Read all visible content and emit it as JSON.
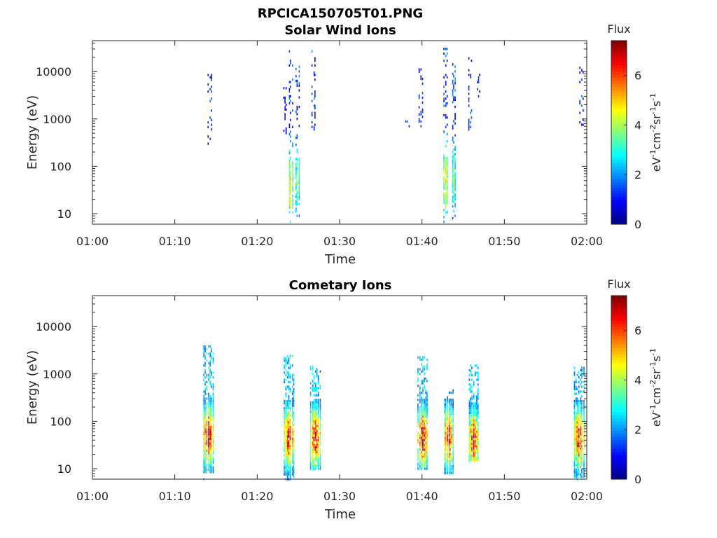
{
  "figure_title": "RPCICA150705T01.PNG",
  "chart_data": [
    {
      "type": "heatmap",
      "title": "Solar Wind Ions",
      "xlabel": "Time",
      "ylabel": "Energy (eV)",
      "x_ticks": [
        "01:00",
        "01:10",
        "01:20",
        "01:30",
        "01:40",
        "01:50",
        "02:00"
      ],
      "xlim": [
        "01:00",
        "02:00"
      ],
      "y_scale": "log",
      "y_ticks": [
        "10",
        "100",
        "1000",
        "10000"
      ],
      "ylim": [
        6,
        45000
      ],
      "colorbar": {
        "title": "Flux",
        "ticks": [
          "0",
          "2",
          "4",
          "6"
        ],
        "range": [
          0,
          7.4
        ]
      },
      "bursts": [
        {
          "t": 14.2,
          "emin": 300,
          "emax": 15000,
          "peak_e": 2000,
          "flux": 1.8
        },
        {
          "t": 23.3,
          "emin": 500,
          "emax": 5000,
          "peak_e": 1500,
          "flux": 1.2
        },
        {
          "t": 24.0,
          "emin": 5,
          "emax": 30000,
          "peak_e": 40,
          "flux": 5.0
        },
        {
          "t": 24.8,
          "emin": 8,
          "emax": 20000,
          "peak_e": 50,
          "flux": 4.0
        },
        {
          "t": 26.8,
          "emin": 600,
          "emax": 30000,
          "peak_e": 3000,
          "flux": 1.8
        },
        {
          "t": 38.2,
          "emin": 700,
          "emax": 1000,
          "peak_e": 800,
          "flux": 1.8
        },
        {
          "t": 39.8,
          "emin": 700,
          "emax": 15000,
          "peak_e": 2000,
          "flux": 1.8
        },
        {
          "t": 42.8,
          "emin": 5,
          "emax": 35000,
          "peak_e": 50,
          "flux": 5.0
        },
        {
          "t": 43.8,
          "emin": 8,
          "emax": 20000,
          "peak_e": 60,
          "flux": 4.0
        },
        {
          "t": 45.8,
          "emin": 600,
          "emax": 25000,
          "peak_e": 2500,
          "flux": 1.8
        },
        {
          "t": 46.8,
          "emin": 3000,
          "emax": 10000,
          "peak_e": 5000,
          "flux": 1.5
        },
        {
          "t": 59.3,
          "emin": 600,
          "emax": 12000,
          "peak_e": 3000,
          "flux": 1.6
        }
      ]
    },
    {
      "type": "heatmap",
      "title": "Cometary Ions",
      "xlabel": "Time",
      "ylabel": "Energy (eV)",
      "x_ticks": [
        "01:00",
        "01:10",
        "01:20",
        "01:30",
        "01:40",
        "01:50",
        "02:00"
      ],
      "xlim": [
        "01:00",
        "02:00"
      ],
      "y_scale": "log",
      "y_ticks": [
        "10",
        "100",
        "1000",
        "10000"
      ],
      "ylim": [
        6,
        45000
      ],
      "colorbar": {
        "title": "Flux",
        "ticks": [
          "0",
          "2",
          "4",
          "6"
        ],
        "range": [
          0,
          7.4
        ]
      },
      "bursts": [
        {
          "t": 14.0,
          "emin": 6,
          "emax": 4000,
          "peak_e": 50,
          "flux": 7.2
        },
        {
          "t": 23.8,
          "emin": 6,
          "emax": 2500,
          "peak_e": 45,
          "flux": 7.0
        },
        {
          "t": 27.0,
          "emin": 10,
          "emax": 1500,
          "peak_e": 45,
          "flux": 7.2
        },
        {
          "t": 40.0,
          "emin": 10,
          "emax": 2500,
          "peak_e": 45,
          "flux": 7.2
        },
        {
          "t": 43.2,
          "emin": 8,
          "emax": 450,
          "peak_e": 45,
          "flux": 7.0
        },
        {
          "t": 46.2,
          "emin": 15,
          "emax": 1500,
          "peak_e": 40,
          "flux": 7.0
        },
        {
          "t": 59.0,
          "emin": 6,
          "emax": 1500,
          "peak_e": 45,
          "flux": 7.0
        }
      ]
    }
  ]
}
